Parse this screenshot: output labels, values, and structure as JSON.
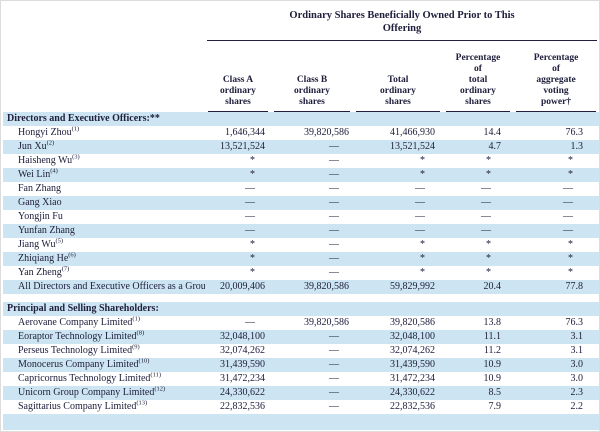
{
  "table": {
    "spanning_header": "Ordinary Shares Beneficially Owned Prior to This\nOffering",
    "columns": [
      "Class A\nordinary\nshares",
      "Class B\nordinary\nshares",
      "Total\nordinary\nshares",
      "Percentage\nof\ntotal\nordinary\nshares",
      "Percentage\nof\naggregate\nvoting\npower†"
    ],
    "stripe_color": "#cde5f2",
    "text_color": "#20203e",
    "sections": [
      {
        "header": "Directors and Executive Officers:**",
        "rows": [
          {
            "name": "Hongyi Zhou",
            "sup": "(1)",
            "values": [
              "1,646,344",
              "39,820,586",
              "41,466,930",
              "14.4",
              "76.3"
            ]
          },
          {
            "name": "Jun Xu",
            "sup": "(2)",
            "values": [
              "13,521,524",
              "—",
              "13,521,524",
              "4.7",
              "1.3"
            ]
          },
          {
            "name": "Haisheng Wu",
            "sup": "(3)",
            "values": [
              "*",
              "—",
              "*",
              "*",
              "*"
            ]
          },
          {
            "name": "Wei Lin",
            "sup": "(4)",
            "values": [
              "*",
              "—",
              "*",
              "*",
              "*"
            ]
          },
          {
            "name": "Fan Zhang",
            "sup": "",
            "values": [
              "—",
              "—",
              "—",
              "—",
              "—"
            ]
          },
          {
            "name": "Gang Xiao",
            "sup": "",
            "values": [
              "—",
              "—",
              "—",
              "—",
              "—"
            ]
          },
          {
            "name": "Yongjin Fu",
            "sup": "",
            "values": [
              "—",
              "—",
              "—",
              "—",
              "—"
            ]
          },
          {
            "name": "Yunfan Zhang",
            "sup": "",
            "values": [
              "—",
              "—",
              "—",
              "—",
              "—"
            ]
          },
          {
            "name": "Jiang Wu",
            "sup": "(5)",
            "values": [
              "*",
              "—",
              "*",
              "*",
              "*"
            ]
          },
          {
            "name": "Zhiqiang He",
            "sup": "(6)",
            "values": [
              "*",
              "—",
              "*",
              "*",
              "*"
            ]
          },
          {
            "name": "Yan Zheng",
            "sup": "(7)",
            "values": [
              "*",
              "—",
              "*",
              "*",
              "*"
            ]
          },
          {
            "name": "All Directors and Executive Officers as a Grou",
            "sup": "",
            "values": [
              "20,009,406",
              "39,820,586",
              "59,829,992",
              "20.4",
              "77.8"
            ]
          }
        ]
      },
      {
        "header": "Principal and Selling Shareholders:",
        "rows": [
          {
            "name": "Aerovane Company Limited",
            "sup": "(1)",
            "values": [
              "—",
              "39,820,586",
              "39,820,586",
              "13.8",
              "76.3"
            ]
          },
          {
            "name": "Eoraptor Technology Limited",
            "sup": "(8)",
            "values": [
              "32,048,100",
              "—",
              "32,048,100",
              "11.1",
              "3.1"
            ]
          },
          {
            "name": "Perseus Technology Limited",
            "sup": "(9)",
            "values": [
              "32,074,262",
              "—",
              "32,074,262",
              "11.2",
              "3.1"
            ]
          },
          {
            "name": "Monocerus Company Limited",
            "sup": "(10)",
            "values": [
              "31,439,590",
              "—",
              "31,439,590",
              "10.9",
              "3.0"
            ]
          },
          {
            "name": "Capricornus Technology Limited",
            "sup": "(11)",
            "values": [
              "31,472,234",
              "—",
              "31,472,234",
              "10.9",
              "3.0"
            ]
          },
          {
            "name": "Unicorn Group Company Limited",
            "sup": "(12)",
            "values": [
              "24,330,622",
              "—",
              "24,330,622",
              "8.5",
              "2.3"
            ]
          },
          {
            "name": "Sagittarius Company Limited",
            "sup": "(13)",
            "values": [
              "22,832,536",
              "—",
              "22,832,536",
              "7.9",
              "2.2"
            ]
          }
        ]
      }
    ]
  }
}
